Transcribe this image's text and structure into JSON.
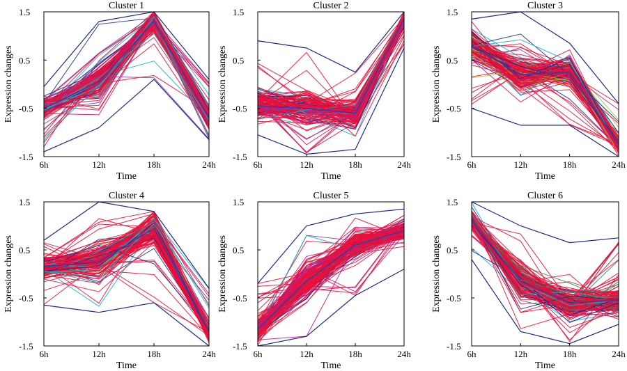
{
  "chart_data": [
    {
      "type": "line",
      "title": "Cluster 1",
      "xlabel": "Time",
      "ylabel": "Expression changes",
      "categories": [
        "6h",
        "12h",
        "18h",
        "24h"
      ],
      "yticks": [
        "-1.5",
        "-0.5",
        "0.5",
        "1.5"
      ],
      "ylim": [
        -1.5,
        1.5
      ],
      "mean_profile": [
        -0.5,
        0.05,
        1.3,
        -0.7
      ],
      "envelope_min": [
        -1.4,
        -0.9,
        0.1,
        -1.15
      ],
      "envelope_max": [
        -0.05,
        1.3,
        1.5,
        0.1
      ],
      "palette": [
        "#e8103a",
        "#1a2a8c",
        "#c21b8a",
        "#16b3c9",
        "#8e3bb5"
      ],
      "grid": false
    },
    {
      "type": "line",
      "title": "Cluster 2",
      "xlabel": "Time",
      "ylabel": "Expression changes",
      "categories": [
        "6h",
        "12h",
        "18h",
        "24h"
      ],
      "yticks": [
        "-1.5",
        "-0.5",
        "0.5",
        "1.5"
      ],
      "ylim": [
        -1.5,
        1.5
      ],
      "mean_profile": [
        -0.45,
        -0.5,
        -0.6,
        1.35
      ],
      "envelope_min": [
        -1.05,
        -1.45,
        -1.35,
        0.75
      ],
      "envelope_max": [
        0.9,
        0.75,
        0.25,
        1.5
      ],
      "palette": [
        "#e8103a",
        "#1a2a8c",
        "#c21b8a",
        "#16b3c9",
        "#8e3bb5"
      ],
      "grid": false
    },
    {
      "type": "line",
      "title": "Cluster 3",
      "xlabel": "Time",
      "ylabel": "Expression changes",
      "categories": [
        "6h",
        "12h",
        "18h",
        "24h"
      ],
      "yticks": [
        "-1.5",
        "-0.5",
        "0.5",
        "1.5"
      ],
      "ylim": [
        -1.5,
        1.5
      ],
      "mean_profile": [
        0.8,
        0.2,
        0.25,
        -1.25
      ],
      "envelope_min": [
        -0.5,
        -0.85,
        -0.85,
        -1.5
      ],
      "envelope_max": [
        1.35,
        1.5,
        0.85,
        -0.4
      ],
      "palette": [
        "#e8103a",
        "#1a2a8c",
        "#c21b8a",
        "#16b3c9",
        "#9acd32"
      ],
      "grid": false
    },
    {
      "type": "line",
      "title": "Cluster 4",
      "xlabel": "Time",
      "ylabel": "Expression changes",
      "categories": [
        "6h",
        "12h",
        "18h",
        "24h"
      ],
      "yticks": [
        "-1.5",
        "-0.5",
        "0.5",
        "1.5"
      ],
      "ylim": [
        -1.5,
        1.5
      ],
      "mean_profile": [
        0.15,
        0.25,
        0.95,
        -1.2
      ],
      "envelope_min": [
        -0.65,
        -0.8,
        -0.6,
        -1.5
      ],
      "envelope_max": [
        0.7,
        1.5,
        1.3,
        -0.3
      ],
      "palette": [
        "#e8103a",
        "#1a2a8c",
        "#c21b8a",
        "#16b3c9",
        "#9acd32"
      ],
      "grid": false
    },
    {
      "type": "line",
      "title": "Cluster 5",
      "xlabel": "Time",
      "ylabel": "Expression changes",
      "categories": [
        "6h",
        "12h",
        "18h",
        "24h"
      ],
      "yticks": [
        "-1.5",
        "-0.5",
        "0.5",
        "1.5"
      ],
      "ylim": [
        -1.5,
        1.5
      ],
      "mean_profile": [
        -1.15,
        -0.15,
        0.6,
        0.9
      ],
      "envelope_min": [
        -1.5,
        -1.3,
        -0.45,
        0.1
      ],
      "envelope_max": [
        -0.2,
        1.0,
        1.25,
        1.35
      ],
      "palette": [
        "#e8103a",
        "#1a2a8c",
        "#c21b8a",
        "#16b3c9",
        "#8e3bb5"
      ],
      "grid": false
    },
    {
      "type": "line",
      "title": "Cluster 6",
      "xlabel": "Time",
      "ylabel": "Expression changes",
      "categories": [
        "6h",
        "12h",
        "18h",
        "24h"
      ],
      "yticks": [
        "-1.5",
        "-0.5",
        "0.5",
        "1.5"
      ],
      "ylim": [
        -1.5,
        1.5
      ],
      "mean_profile": [
        1.1,
        -0.15,
        -0.6,
        -0.55
      ],
      "envelope_min": [
        0.3,
        -1.2,
        -1.45,
        -1.05
      ],
      "envelope_max": [
        1.5,
        1.0,
        0.65,
        0.75
      ],
      "palette": [
        "#e8103a",
        "#1a2a8c",
        "#c21b8a",
        "#16b3c9",
        "#2e8b57"
      ],
      "grid": false
    }
  ]
}
